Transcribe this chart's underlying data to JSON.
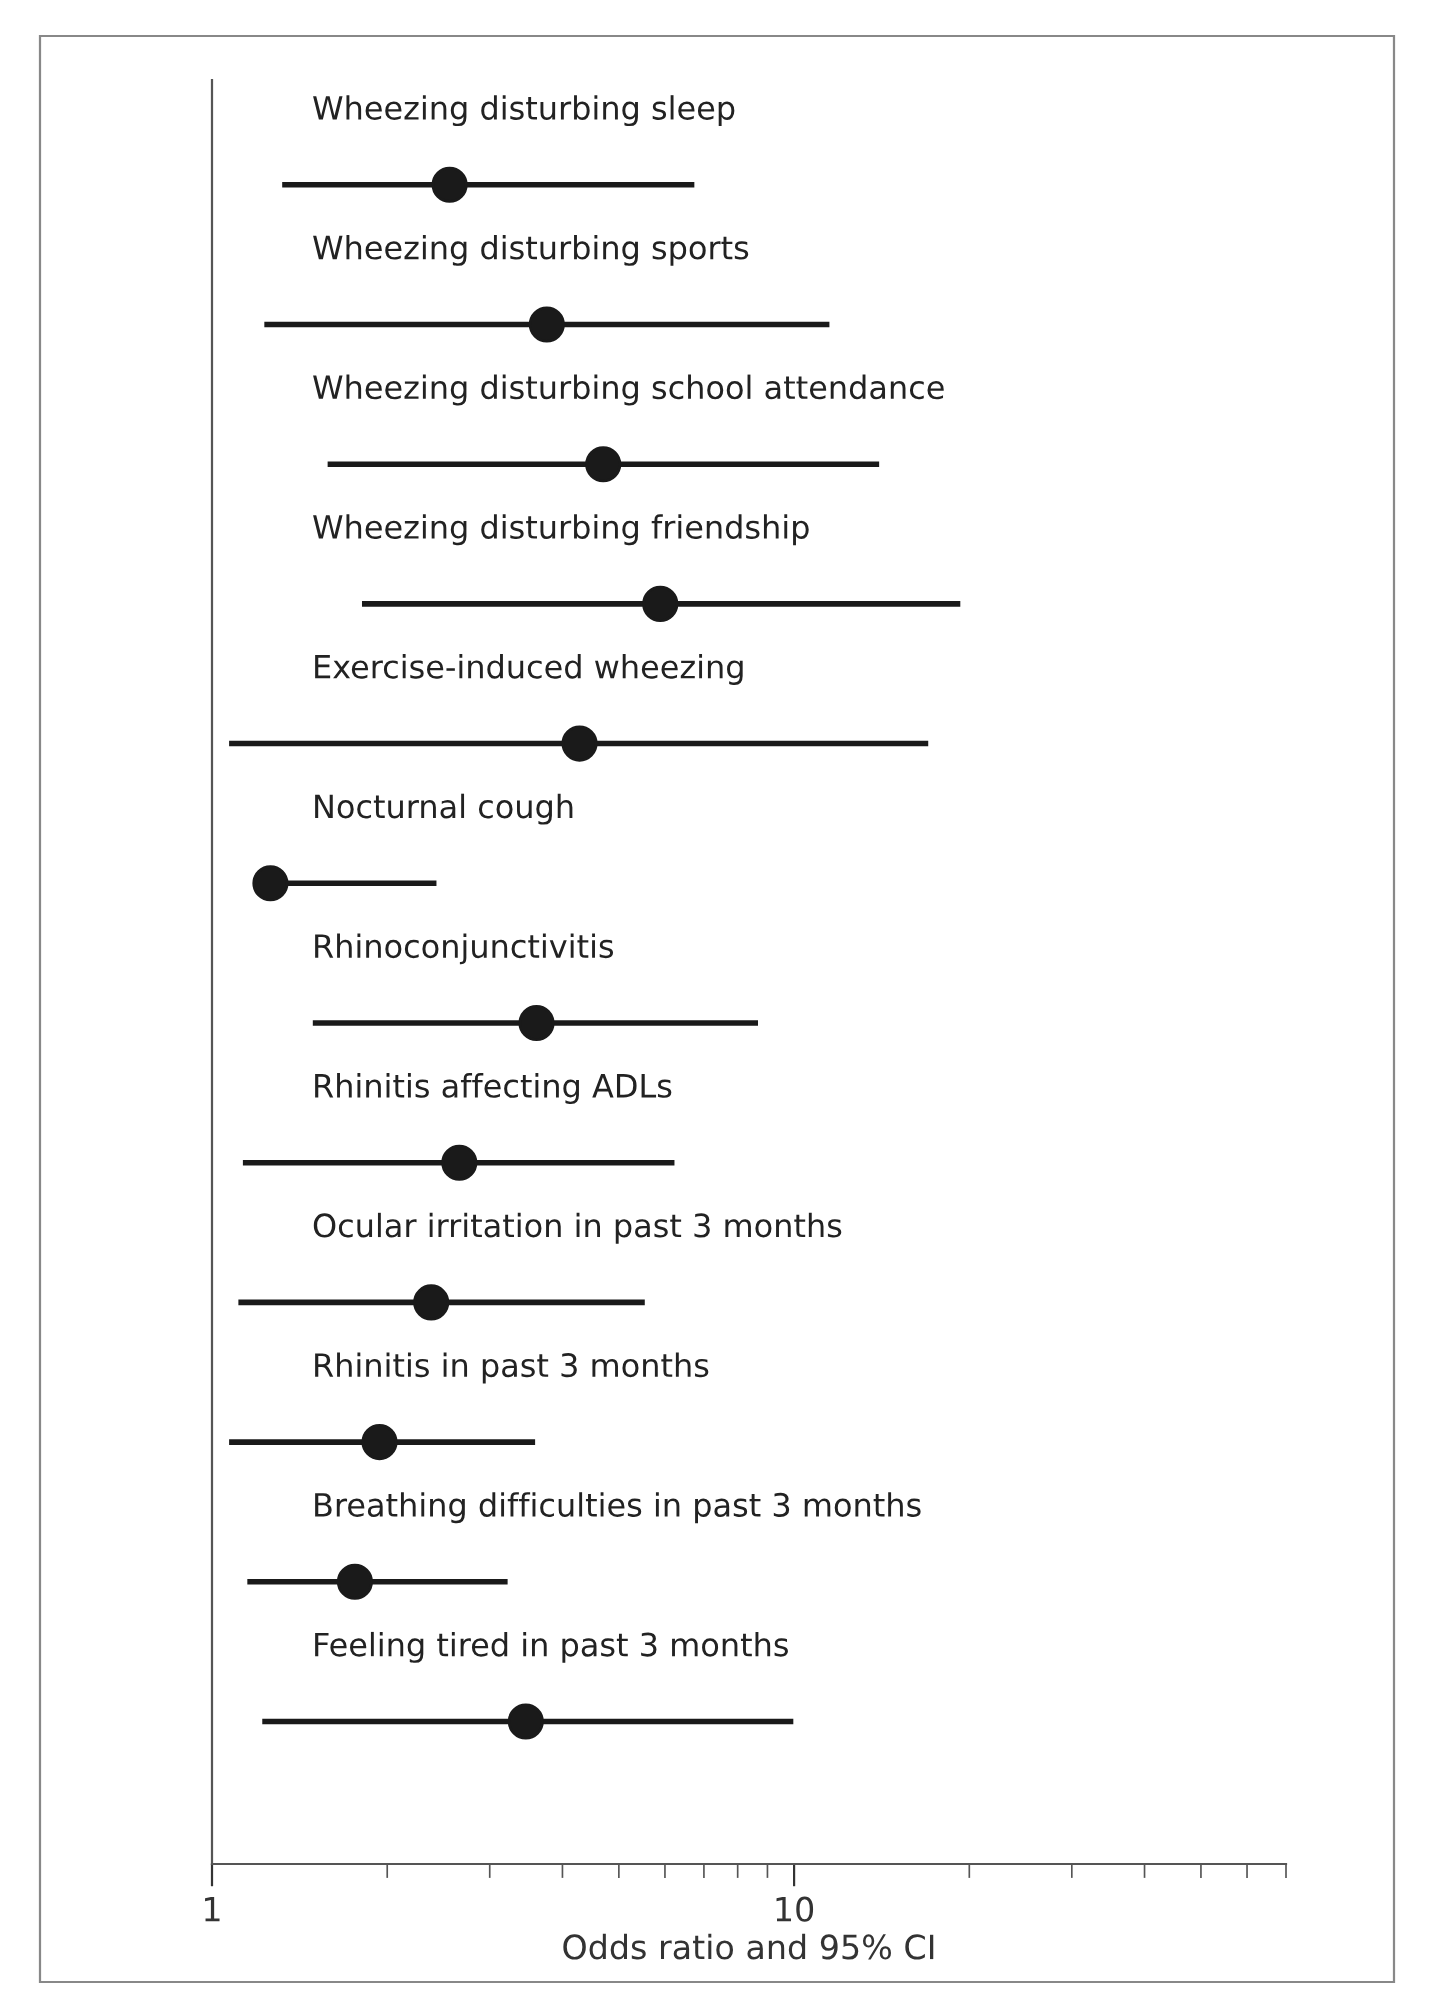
{
  "chart_data": {
    "type": "scatter",
    "orientation": "horizontal",
    "xlabel": "Odds ratio and 95% CI",
    "categories": [
      "Wheezing disturbing sleep",
      "Wheezing disturbing sports",
      "Wheezing disturbing school attendance",
      "Wheezing disturbing friendship",
      "Exercise-induced wheezing",
      "Nocturnal cough",
      "Rhinoconjunctivitis",
      "Rhinitis affecting ADLs",
      "Ocular irritation in past 3 months",
      "Rhinitis in past 3 months",
      "Breathing difficulties in past 3 months",
      "Feeling tired in past 3 months"
    ],
    "values": [
      2.56,
      3.76,
      4.7,
      5.89,
      4.28,
      1.26,
      3.61,
      2.66,
      2.38,
      1.94,
      1.76,
      3.46
    ],
    "errors": [
      [
        1.32,
        6.74
      ],
      [
        1.23,
        11.5
      ],
      [
        1.58,
        14.0
      ],
      [
        1.81,
        19.3
      ],
      [
        1.07,
        17.0
      ],
      [
        1.2,
        2.43
      ],
      [
        1.49,
        8.67
      ],
      [
        1.13,
        6.23
      ],
      [
        1.11,
        5.54
      ],
      [
        1.07,
        3.59
      ],
      [
        1.15,
        3.22
      ],
      [
        1.22,
        9.97
      ]
    ],
    "color": "#1a1a1a",
    "marker": "circle",
    "log": "x",
    "xlim": [
      1,
      70
    ],
    "xticks": [
      1,
      10
    ],
    "grid": false,
    "legend": false
  }
}
